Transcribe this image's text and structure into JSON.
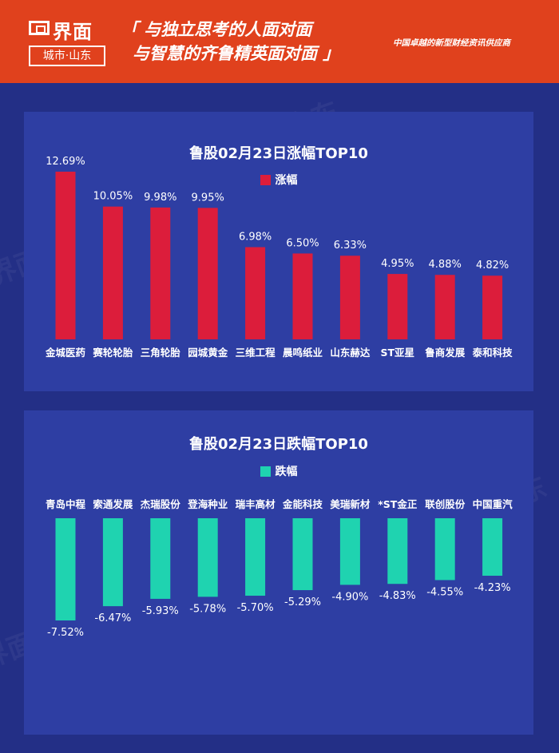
{
  "header": {
    "logo_name": "界面",
    "logo_sub": "城市·山东",
    "slogan_line1": "「 与独立思考的人面对面",
    "slogan_line2": "与智慧的齐鲁精英面对面 」",
    "tagline": "中国卓越的新型财经资讯供应商",
    "bg_color": "#e0411d"
  },
  "watermark_text": "界面 城市·山东",
  "chart_data": [
    {
      "type": "bar",
      "title": "鲁股02月23日涨幅TOP10",
      "legend": "涨幅",
      "color": "#dc1d3b",
      "categories": [
        "金城医药",
        "赛轮轮胎",
        "三角轮胎",
        "园城黄金",
        "三维工程",
        "晨鸣纸业",
        "山东赫达",
        "ST亚星",
        "鲁商发展",
        "泰和科技"
      ],
      "values": [
        12.69,
        10.05,
        9.98,
        9.95,
        6.98,
        6.5,
        6.33,
        4.95,
        4.88,
        4.82
      ],
      "labels": [
        "12.69%",
        "10.05%",
        "9.98%",
        "9.95%",
        "6.98%",
        "6.50%",
        "6.33%",
        "4.95%",
        "4.88%",
        "4.82%"
      ],
      "ylim": [
        0,
        12.69
      ],
      "grid": false
    },
    {
      "type": "bar",
      "title": "鲁股02月23日跌幅TOP10",
      "legend": "跌幅",
      "color": "#1fd3b0",
      "categories": [
        "青岛中程",
        "索通发展",
        "杰瑞股份",
        "登海种业",
        "瑞丰高材",
        "金能科技",
        "美瑞新材",
        "*ST金正",
        "联创股份",
        "中国重汽"
      ],
      "values": [
        -7.52,
        -6.47,
        -5.93,
        -5.78,
        -5.7,
        -5.29,
        -4.9,
        -4.83,
        -4.55,
        -4.23
      ],
      "labels": [
        "-7.52%",
        "-6.47%",
        "-5.93%",
        "-5.78%",
        "-5.70%",
        "-5.29%",
        "-4.90%",
        "-4.83%",
        "-4.55%",
        "-4.23%"
      ],
      "ylim": [
        -7.52,
        0
      ],
      "grid": false
    }
  ]
}
